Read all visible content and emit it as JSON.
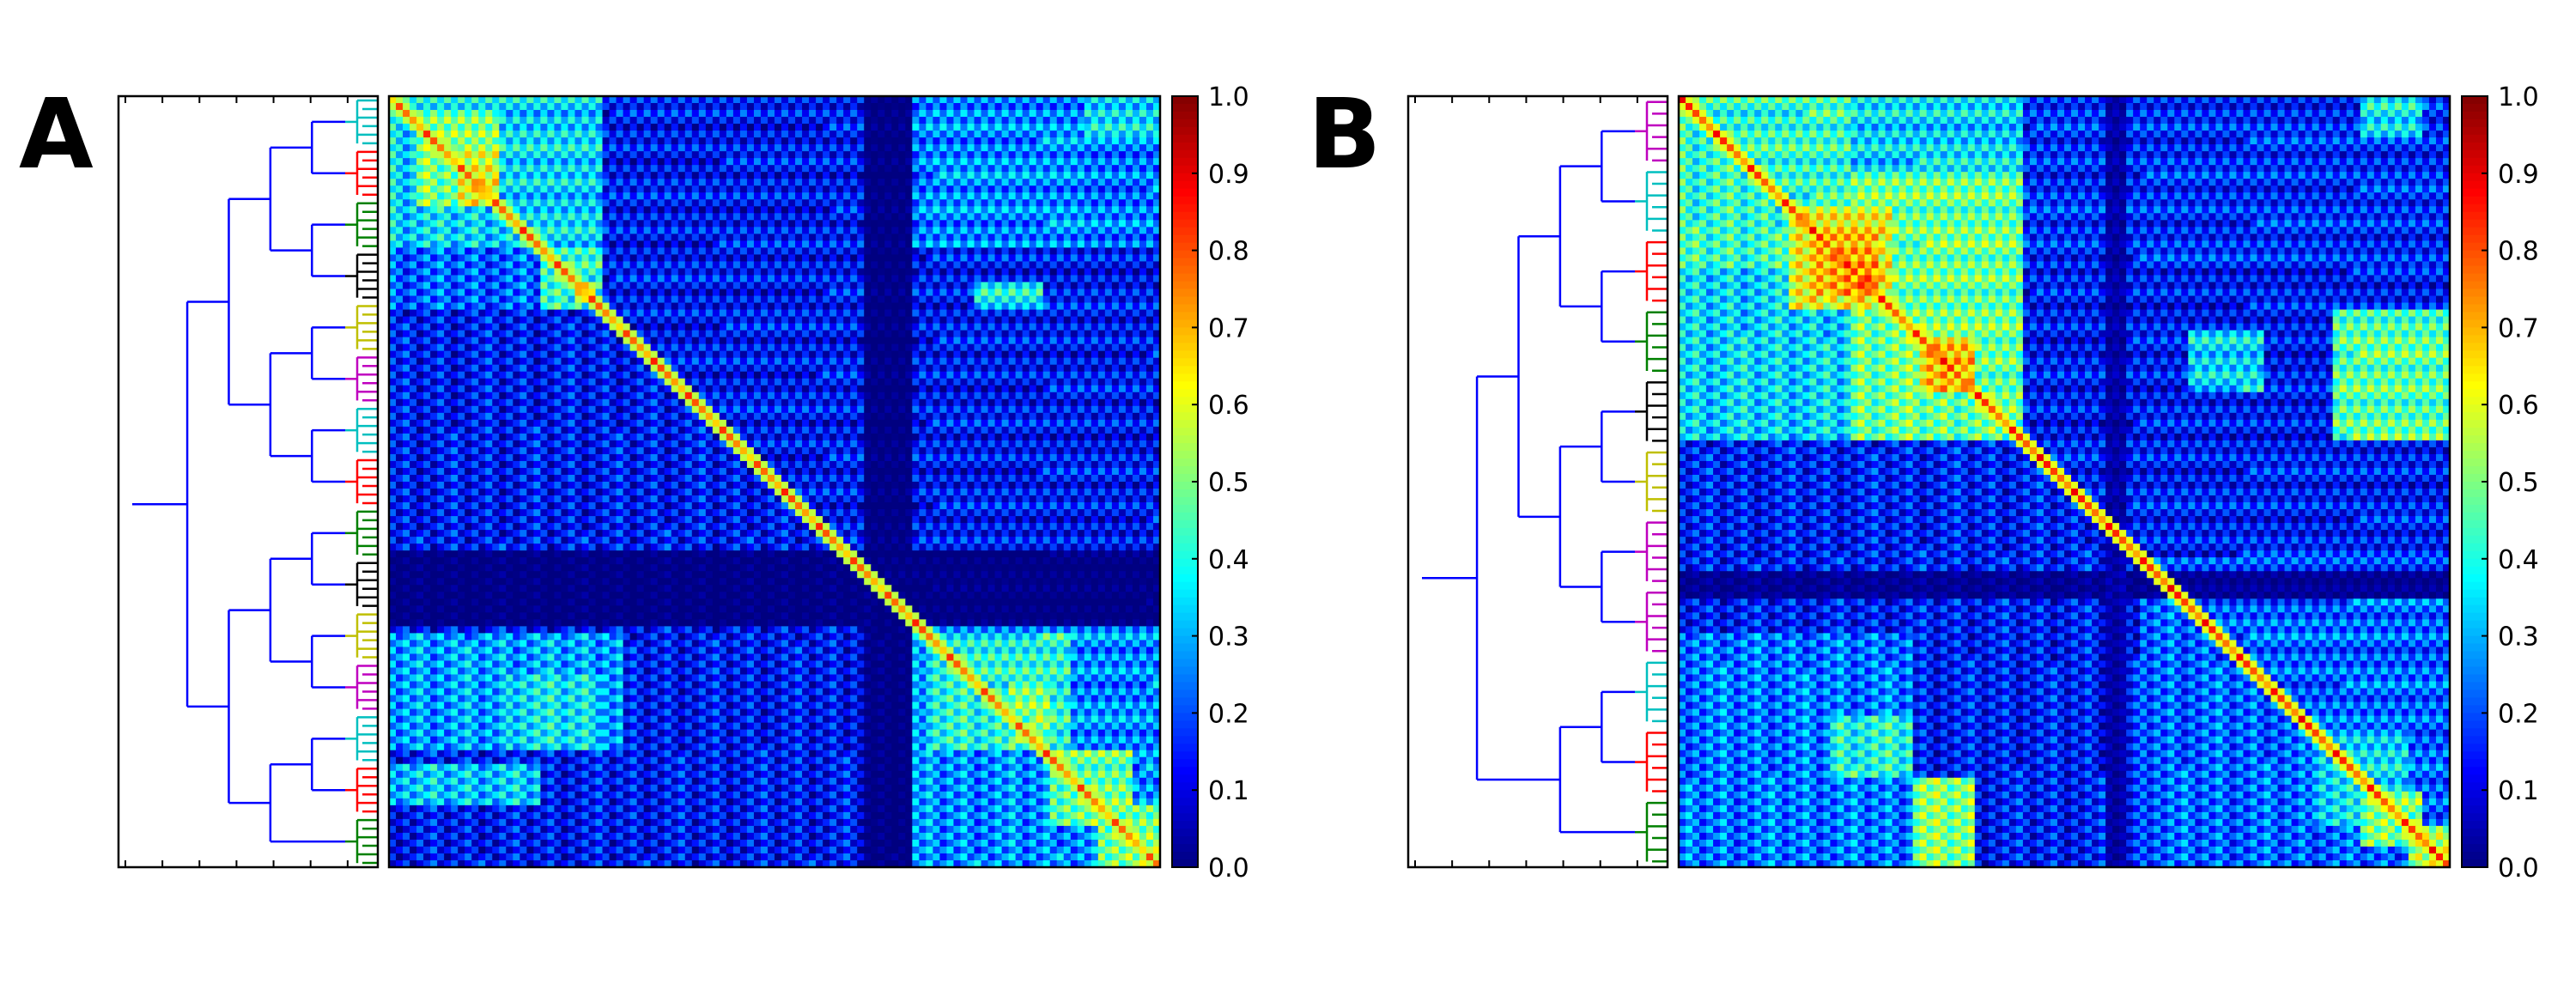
{
  "chart_data": [
    {
      "type": "heatmap",
      "panel_label": "A",
      "colormap": "jet",
      "colorbar": {
        "min": 0.0,
        "max": 1.0,
        "ticks": [
          "0.0",
          "0.1",
          "0.2",
          "0.3",
          "0.4",
          "0.5",
          "0.6",
          "0.7",
          "0.8",
          "0.9",
          "1.0"
        ]
      },
      "dendrogram": {
        "orientation": "left",
        "link_color": "#0000ff",
        "cluster_colors_top_to_bottom": [
          "#00bfbf",
          "#ff0000",
          "#008000",
          "#000000",
          "#bfbf00",
          "#bf00bf",
          "#00bfbf",
          "#ff0000",
          "#008000",
          "#000000",
          "#bfbf00",
          "#bf00bf",
          "#00bfbf",
          "#ff0000",
          "#008000"
        ]
      },
      "blocks": [
        {
          "r0": 0.0,
          "r1": 0.2,
          "c0": 0.0,
          "c1": 0.28,
          "v": 0.34
        },
        {
          "r0": 0.02,
          "r1": 0.14,
          "c0": 0.04,
          "c1": 0.14,
          "v": 0.5
        },
        {
          "r0": 0.06,
          "r1": 0.14,
          "c0": 0.09,
          "c1": 0.14,
          "v": 0.6
        },
        {
          "r0": 0.2,
          "r1": 0.28,
          "c0": 0.2,
          "c1": 0.28,
          "v": 0.42
        },
        {
          "r0": 0.24,
          "r1": 0.27,
          "c0": 0.24,
          "c1": 0.27,
          "v": 0.62
        },
        {
          "r0": 0.2,
          "r1": 0.28,
          "c0": 0.0,
          "c1": 0.2,
          "v": 0.22
        },
        {
          "r0": 0.0,
          "r1": 0.2,
          "c0": 0.68,
          "c1": 1.0,
          "v": 0.24
        },
        {
          "r0": 0.15,
          "r1": 0.18,
          "c0": 0.73,
          "c1": 0.8,
          "v": 0.4
        },
        {
          "r0": 0.24,
          "r1": 0.28,
          "c0": 0.76,
          "c1": 0.85,
          "v": 0.38
        },
        {
          "r0": 0.0,
          "r1": 0.05,
          "c0": 0.9,
          "c1": 1.0,
          "v": 0.36
        },
        {
          "r0": 0.6,
          "r1": 1.0,
          "c0": 0.68,
          "c1": 1.0,
          "v": 0.26
        },
        {
          "r0": 0.7,
          "r1": 0.85,
          "c0": 0.7,
          "c1": 0.88,
          "v": 0.4
        },
        {
          "r0": 0.76,
          "r1": 0.84,
          "c0": 0.8,
          "c1": 0.86,
          "v": 0.5
        },
        {
          "r0": 0.85,
          "r1": 0.95,
          "c0": 0.86,
          "c1": 0.96,
          "v": 0.48
        },
        {
          "r0": 0.92,
          "r1": 1.0,
          "c0": 0.92,
          "c1": 1.0,
          "v": 0.5
        },
        {
          "r0": 0.7,
          "r1": 0.85,
          "c0": 0.0,
          "c1": 0.3,
          "v": 0.28
        },
        {
          "r0": 0.75,
          "r1": 0.85,
          "c0": 0.15,
          "c1": 0.28,
          "v": 0.36
        },
        {
          "r0": 0.87,
          "r1": 0.92,
          "c0": 0.0,
          "c1": 0.2,
          "v": 0.32
        },
        {
          "r0": 0.0,
          "r1": 0.2,
          "c0": 0.7,
          "c1": 0.9,
          "v": 0.26
        },
        {
          "r0": 0.59,
          "r1": 0.69,
          "c0": 0.0,
          "c1": 1.0,
          "v": 0.0
        },
        {
          "r0": 0.0,
          "r1": 1.0,
          "c0": 0.62,
          "c1": 0.68,
          "v": 0.0
        }
      ],
      "base_value": 0.13,
      "diagonal_value": 0.75
    },
    {
      "type": "heatmap",
      "panel_label": "B",
      "colormap": "jet",
      "colorbar": {
        "min": 0.0,
        "max": 1.0,
        "ticks": [
          "0.0",
          "0.1",
          "0.2",
          "0.3",
          "0.4",
          "0.5",
          "0.6",
          "0.7",
          "0.8",
          "0.9",
          "1.0"
        ]
      },
      "dendrogram": {
        "orientation": "left",
        "link_color": "#0000ff",
        "cluster_colors_top_to_bottom": [
          "#bf00bf",
          "#00bfbf",
          "#ff0000",
          "#008000",
          "#000000",
          "#bfbf00",
          "#bf00bf",
          "#bf00bf",
          "#00bfbf",
          "#ff0000",
          "#008000"
        ]
      },
      "blocks": [
        {
          "r0": 0.0,
          "r1": 0.45,
          "c0": 0.0,
          "c1": 0.45,
          "v": 0.34
        },
        {
          "r0": 0.0,
          "r1": 0.22,
          "c0": 0.0,
          "c1": 0.22,
          "v": 0.42
        },
        {
          "r0": 0.1,
          "r1": 0.45,
          "c0": 0.22,
          "c1": 0.45,
          "v": 0.48
        },
        {
          "r0": 0.14,
          "r1": 0.28,
          "c0": 0.14,
          "c1": 0.28,
          "v": 0.62
        },
        {
          "r0": 0.18,
          "r1": 0.26,
          "c0": 0.18,
          "c1": 0.26,
          "v": 0.72
        },
        {
          "r0": 0.31,
          "r1": 0.38,
          "c0": 0.31,
          "c1": 0.38,
          "v": 0.68
        },
        {
          "r0": 0.0,
          "r1": 0.22,
          "c0": 0.45,
          "c1": 1.0,
          "v": 0.16
        },
        {
          "r0": 0.28,
          "r1": 0.45,
          "c0": 0.85,
          "c1": 1.0,
          "v": 0.46
        },
        {
          "r0": 0.3,
          "r1": 0.38,
          "c0": 0.66,
          "c1": 0.76,
          "v": 0.34
        },
        {
          "r0": 0.0,
          "r1": 0.05,
          "c0": 0.88,
          "c1": 0.96,
          "v": 0.36
        },
        {
          "r0": 0.45,
          "r1": 1.0,
          "c0": 0.0,
          "c1": 1.0,
          "v": 0.14
        },
        {
          "r0": 0.6,
          "r1": 1.0,
          "c0": 0.6,
          "c1": 1.0,
          "v": 0.22
        },
        {
          "r0": 0.82,
          "r1": 0.95,
          "c0": 0.82,
          "c1": 0.95,
          "v": 0.34
        },
        {
          "r0": 0.9,
          "r1": 0.97,
          "c0": 0.88,
          "c1": 0.96,
          "v": 0.5
        },
        {
          "r0": 0.95,
          "r1": 1.0,
          "c0": 0.95,
          "c1": 1.0,
          "v": 0.55
        },
        {
          "r0": 0.88,
          "r1": 1.0,
          "c0": 0.3,
          "c1": 0.38,
          "v": 0.5
        },
        {
          "r0": 0.7,
          "r1": 1.0,
          "c0": 0.0,
          "c1": 0.3,
          "v": 0.24
        },
        {
          "r0": 0.8,
          "r1": 0.88,
          "c0": 0.2,
          "c1": 0.3,
          "v": 0.4
        },
        {
          "r0": 0.62,
          "r1": 0.65,
          "c0": 0.0,
          "c1": 1.0,
          "v": 0.02
        },
        {
          "r0": 0.0,
          "r1": 1.0,
          "c0": 0.55,
          "c1": 0.58,
          "v": 0.04
        }
      ],
      "base_value": 0.13,
      "diagonal_value": 0.8
    }
  ]
}
